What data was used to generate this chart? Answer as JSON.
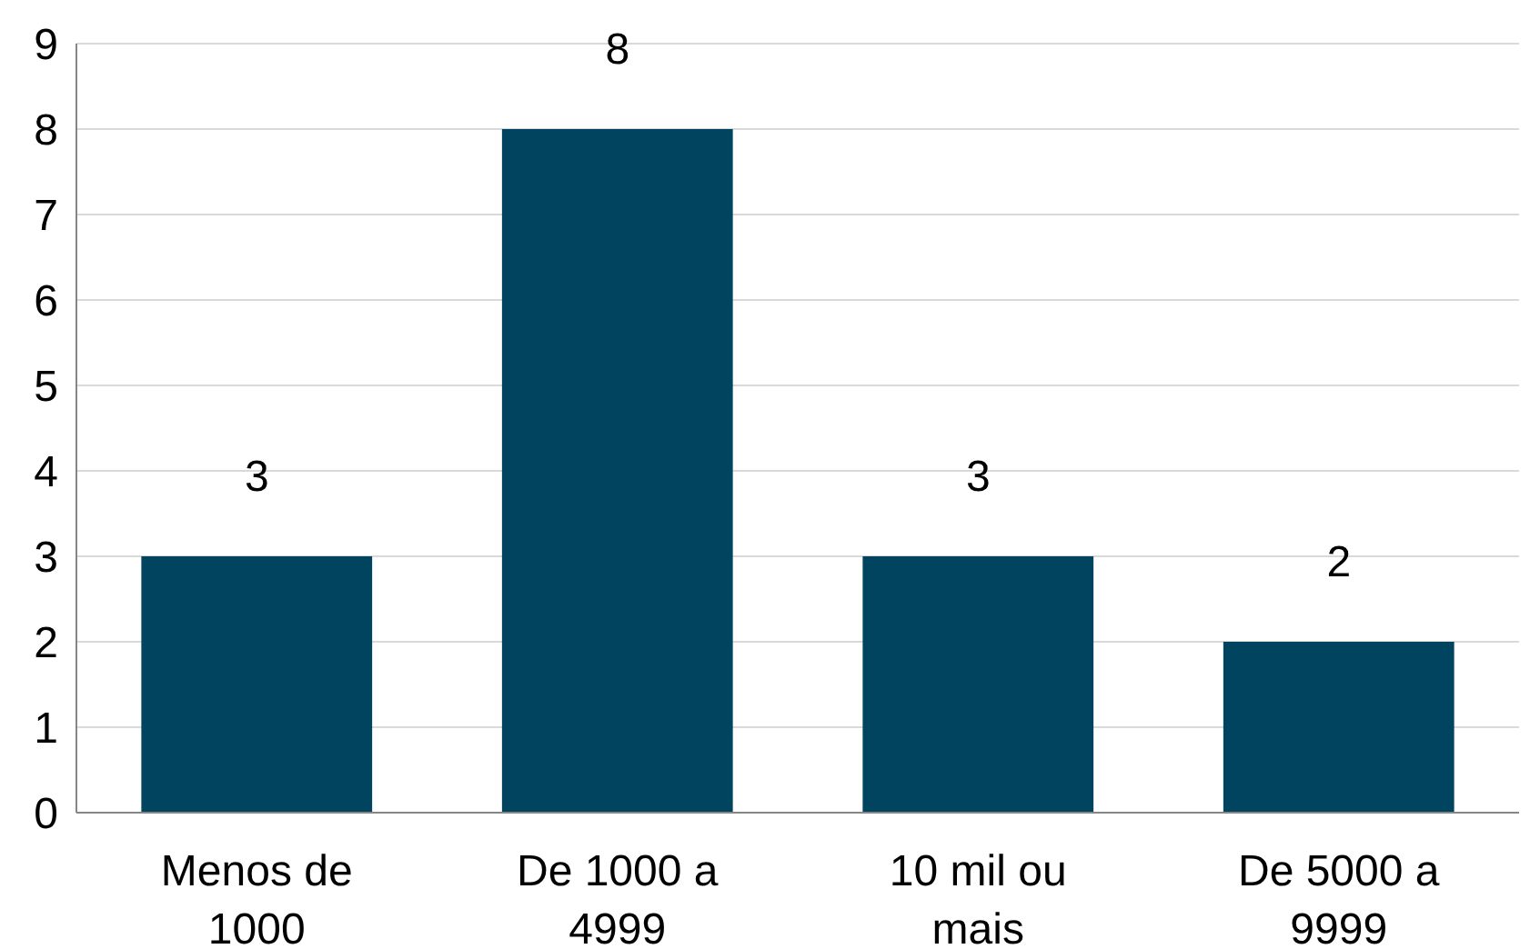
{
  "chart_data": {
    "type": "bar",
    "categories": [
      "Menos de 1000",
      "De 1000 a 4999",
      "10 mil ou mais",
      "De 5000 a 9999"
    ],
    "values": [
      3,
      8,
      3,
      2
    ],
    "color": "#00445f",
    "ylim": [
      0,
      9
    ],
    "yticks": [
      0,
      1,
      2,
      3,
      4,
      5,
      6,
      7,
      8,
      9
    ],
    "grid": "y",
    "data_labels": true
  }
}
